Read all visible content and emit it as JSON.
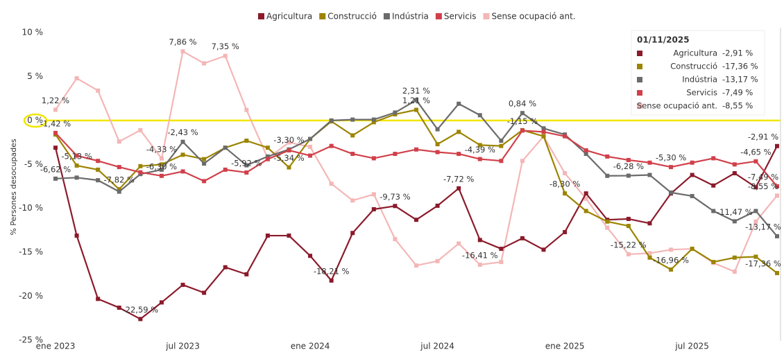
{
  "chart_data": {
    "type": "line",
    "y_axis_label": "% Persones desocupades",
    "categories": [
      "ene 2023",
      null,
      null,
      null,
      null,
      null,
      "jul 2023",
      null,
      null,
      null,
      null,
      null,
      "ene 2024",
      null,
      null,
      null,
      null,
      null,
      "jul 2024",
      null,
      null,
      null,
      null,
      null,
      "ene 2025",
      null,
      null,
      null,
      null,
      null,
      "jul 2025",
      null,
      null,
      null,
      null
    ],
    "ylim": [
      -25,
      10
    ],
    "yticks": [
      {
        "value": 10,
        "label": "10 %"
      },
      {
        "value": 5,
        "label": "5 %"
      },
      {
        "value": 0,
        "label": "0 %"
      },
      {
        "value": -5,
        "label": "-5 %"
      },
      {
        "value": -10,
        "label": "-10 %"
      },
      {
        "value": -15,
        "label": "-15 %"
      },
      {
        "value": -20,
        "label": "-20 %"
      },
      {
        "value": -25,
        "label": "-25 %"
      }
    ],
    "grid": false,
    "legend": "top",
    "reference_line": {
      "value": 0,
      "color": "#f2e600"
    },
    "positive_label_color": "#e05a5a",
    "negative_label_color": "#3cc43c",
    "series": [
      {
        "name": "Agricultura",
        "color": "#8b1a2b",
        "values": [
          -3.1,
          -13.1,
          -20.3,
          -21.3,
          -22.59,
          -20.7,
          -18.7,
          -19.6,
          -16.7,
          -17.5,
          -13.1,
          -13.1,
          -15.4,
          -18.21,
          -12.8,
          -10.1,
          -9.73,
          -11.3,
          -9.7,
          -7.72,
          -13.6,
          -14.6,
          -13.4,
          -14.7,
          -12.7,
          -8.3,
          -11.3,
          -11.2,
          -11.7,
          -8.3,
          -6.2,
          -7.4,
          -6.0,
          -7.6,
          -2.91
        ],
        "value_labels": [
          null,
          null,
          null,
          null,
          "-22,59 %",
          null,
          null,
          null,
          null,
          null,
          null,
          null,
          null,
          "-18,21 %",
          null,
          null,
          "-9,73 %",
          null,
          null,
          "-7,72 %",
          null,
          null,
          null,
          null,
          null,
          null,
          null,
          null,
          null,
          null,
          null,
          null,
          null,
          null,
          "-2,91 %"
        ]
      },
      {
        "name": "Construcció",
        "color": "#9c8400",
        "values": [
          -1.6,
          -5.13,
          -5.6,
          -7.82,
          -5.2,
          -5.0,
          -3.9,
          -4.4,
          -3.1,
          -2.3,
          -3.1,
          -5.34,
          -2.1,
          -0.1,
          -1.7,
          -0.2,
          0.7,
          1.21,
          -2.7,
          -1.3,
          -2.8,
          -2.9,
          -1.1,
          -1.8,
          -8.3,
          -10.3,
          -11.5,
          -12.0,
          -15.6,
          -16.96,
          -14.6,
          -16.1,
          -15.6,
          -15.5,
          -17.36
        ],
        "value_labels": [
          null,
          "-5,13 %",
          null,
          "-7,82 %",
          null,
          null,
          null,
          null,
          null,
          null,
          null,
          "-5,34 %",
          null,
          null,
          null,
          null,
          null,
          "1,21 %",
          null,
          null,
          null,
          null,
          null,
          null,
          "-8,30 %",
          null,
          null,
          null,
          null,
          "-16,96 %",
          null,
          null,
          null,
          null,
          "-17,36 %"
        ]
      },
      {
        "name": "Indústria",
        "color": "#6b6b6b",
        "values": [
          -6.62,
          -6.5,
          -6.8,
          -8.1,
          -6.1,
          -5.6,
          -2.43,
          -4.9,
          -3.1,
          -5.1,
          -4.1,
          -3.3,
          -2.1,
          0.0,
          0.1,
          0.1,
          0.9,
          2.31,
          -1.0,
          1.9,
          0.6,
          -2.3,
          0.84,
          -0.9,
          -1.6,
          -3.8,
          -6.3,
          -6.28,
          -6.2,
          -8.2,
          -8.6,
          -10.3,
          -11.47,
          -10.3,
          -13.17
        ],
        "value_labels": [
          "-6,62 %",
          null,
          null,
          null,
          null,
          null,
          "-2,43 %",
          null,
          null,
          null,
          null,
          "-3,30 %",
          null,
          null,
          null,
          null,
          null,
          "2,31 %",
          null,
          null,
          null,
          null,
          "0,84 %",
          null,
          null,
          null,
          null,
          "-6,28 %",
          null,
          null,
          null,
          null,
          "-11,47 %",
          null,
          "-13,17 %"
        ]
      },
      {
        "name": "Servicis",
        "color": "#d1404a",
        "values": [
          -1.42,
          -4.0,
          -4.6,
          -5.3,
          -5.9,
          -6.3,
          -5.8,
          -6.9,
          -5.6,
          -5.92,
          -4.4,
          -3.4,
          -4.0,
          -2.9,
          -3.8,
          -4.3,
          -3.8,
          -3.3,
          -3.6,
          -3.8,
          -4.39,
          -4.6,
          -1.15,
          -1.3,
          -1.8,
          -3.4,
          -4.1,
          -4.5,
          -4.8,
          -5.3,
          -4.8,
          -4.3,
          -5.0,
          -4.65,
          -7.49
        ],
        "value_labels": [
          "-1,42 %",
          null,
          null,
          null,
          null,
          "-6,30 %",
          null,
          null,
          null,
          "-5,92 %",
          null,
          null,
          null,
          null,
          null,
          null,
          null,
          null,
          null,
          null,
          "-4,39 %",
          null,
          "-1,15 %",
          null,
          null,
          null,
          null,
          null,
          null,
          "-5,30 %",
          null,
          null,
          null,
          "-4,65 %",
          "-7,49 %"
        ]
      },
      {
        "name": "Sense ocupació ant.",
        "color": "#f4b6b6",
        "values": [
          1.22,
          4.8,
          3.4,
          -2.4,
          -1.1,
          -4.33,
          7.86,
          6.5,
          7.35,
          1.2,
          -4.3,
          -2.5,
          -3.0,
          -7.2,
          -9.1,
          -8.4,
          -13.5,
          -16.5,
          -16.0,
          -14.0,
          -16.41,
          -16.1,
          -4.6,
          -1.8,
          -6.0,
          -8.9,
          -12.2,
          -15.22,
          -15.1,
          -14.7,
          -14.6,
          -16.2,
          -17.2,
          -11.5,
          -8.55
        ],
        "value_labels": [
          "1,22 %",
          null,
          null,
          null,
          null,
          "-4,33 %",
          "7,86 %",
          null,
          "7,35 %",
          null,
          null,
          null,
          null,
          null,
          null,
          null,
          null,
          null,
          null,
          null,
          "-16,41 %",
          null,
          null,
          null,
          null,
          null,
          null,
          "-15,22 %",
          null,
          null,
          null,
          null,
          null,
          null,
          "-8,55 %"
        ]
      }
    ],
    "tooltip": {
      "title": "01/11/2025",
      "items": [
        {
          "name": "Agricultura",
          "label": "-2,91 %"
        },
        {
          "name": "Construcció",
          "label": "-17,36 %"
        },
        {
          "name": "Indústria",
          "label": "-13,17 %"
        },
        {
          "name": "Servicis",
          "label": "-7,49 %"
        },
        {
          "name": "Sense ocupació ant.",
          "label": "-8,55 %"
        }
      ]
    }
  }
}
